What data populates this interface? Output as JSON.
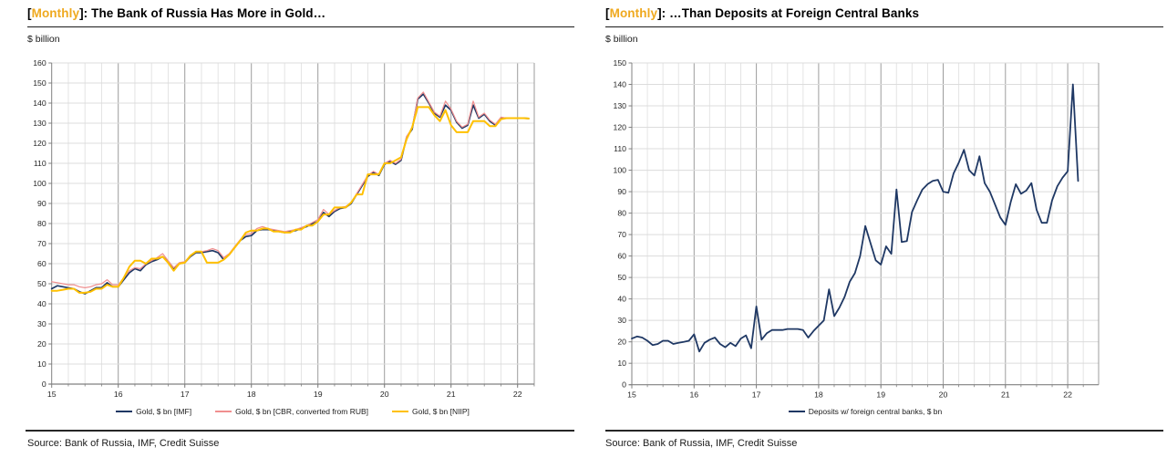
{
  "theme": {
    "highlight": "#EFA91F",
    "navy": "#1F3864",
    "pink": "#F08F8F",
    "gold": "#FFC000",
    "grid_minor": "#E4E4E4",
    "grid_major_h": "#DCDCDC",
    "grid_year": "#9C9C9C",
    "axis": "#808080",
    "tick_text": "#262626"
  },
  "chart_data": [
    {
      "type": "line",
      "title": "[Monthly]: The Bank of Russia Has More in Gold…",
      "title_open": "[",
      "title_highlight": "Monthly",
      "title_rest": "]: The Bank of Russia Has More in Gold…",
      "unit_label": "$ billion",
      "source": "Source: Bank of Russia, IMF, Credit Suisse",
      "x_start_year": 2015,
      "x_frequency": "monthly",
      "xtick_labels": [
        "15",
        "16",
        "17",
        "18",
        "19",
        "20",
        "21",
        "22"
      ],
      "x_minor_per_year": 4,
      "ylim": [
        0,
        160
      ],
      "ytick_step": 10,
      "grid": true,
      "legend_position": "bottom",
      "series": [
        {
          "name": "Gold, $ bn [IMF]",
          "color": "#1F3864",
          "width": 1.7,
          "values": [
            47.5,
            49,
            48.5,
            48,
            47.5,
            46,
            45,
            46.5,
            48,
            48,
            50.5,
            48.5,
            48.5,
            52,
            55.5,
            57.5,
            56.5,
            59.5,
            61,
            62,
            63.5,
            61,
            57.5,
            60,
            60.5,
            63.5,
            65.5,
            65.5,
            66,
            66.5,
            65.5,
            62,
            64.5,
            68,
            71.5,
            73.5,
            74,
            76.5,
            77,
            77,
            76.5,
            76,
            75.5,
            76,
            76.5,
            77.5,
            78.5,
            80,
            81,
            85.5,
            83.5,
            86,
            87.5,
            88,
            90,
            94.5,
            99,
            103.5,
            105.5,
            104,
            109.5,
            111,
            109.5,
            111.5,
            123,
            127,
            142,
            144.5,
            140,
            135,
            133,
            139,
            136.5,
            130.5,
            127.5,
            129,
            139,
            132.5,
            134.5,
            131,
            129,
            132.5,
            132.5,
            132.5,
            132.5,
            132.5,
            132.3
          ]
        },
        {
          "name": "Gold, $ bn [CBR, converted from RUB]",
          "color": "#F08F8F",
          "width": 1.2,
          "values": [
            51,
            50.5,
            50,
            49.5,
            49.5,
            48.5,
            48,
            48.5,
            49.5,
            50,
            52,
            49.5,
            49.5,
            53,
            56.5,
            58,
            57.5,
            60,
            61.5,
            63,
            65,
            61.5,
            58,
            60.5,
            61,
            64,
            66,
            66,
            66.5,
            67.5,
            66.5,
            63,
            65,
            68.5,
            72,
            74.5,
            75,
            77.5,
            78.5,
            77.5,
            77,
            76.5,
            76,
            76.5,
            77,
            78,
            79,
            80.5,
            82,
            87,
            84.5,
            86.5,
            88,
            88.5,
            90.5,
            95,
            99.5,
            104,
            106,
            104.5,
            110,
            111.5,
            110,
            112,
            123.5,
            127.5,
            142.5,
            145.5,
            140.5,
            135.5,
            133.5,
            141,
            137,
            131,
            128,
            129.5,
            141,
            133,
            135,
            131.5,
            129.5,
            133,
            132.5,
            132.5,
            132.5,
            132.5,
            132.3
          ]
        },
        {
          "name": "Gold, $ bn [NIIP]",
          "color": "#FFC000",
          "width": 2,
          "values": [
            46.5,
            46.5,
            47,
            47.5,
            47.5,
            45.5,
            45.5,
            46,
            47.5,
            47.5,
            49.5,
            48.5,
            48.5,
            53,
            58.5,
            61.5,
            61.5,
            60,
            62.5,
            62.5,
            63.5,
            60.5,
            56.5,
            60,
            60.5,
            64,
            66,
            66,
            60.5,
            60.5,
            60.5,
            62,
            64.5,
            68,
            71.5,
            75.5,
            76.5,
            76.5,
            77.5,
            77.5,
            76,
            76,
            75.5,
            75.5,
            77,
            77,
            79,
            79,
            81,
            84.5,
            84.5,
            88,
            88,
            88,
            90.5,
            94.5,
            94.5,
            104.5,
            104.5,
            104.5,
            110,
            110,
            111.5,
            113,
            122,
            128,
            138,
            138,
            138,
            134,
            131,
            136.5,
            129,
            125.5,
            125.5,
            125.5,
            131,
            131,
            131,
            128.5,
            128.5,
            132,
            132.5,
            132.5,
            132.5,
            132.5,
            132.3
          ]
        }
      ]
    },
    {
      "type": "line",
      "title": "[Monthly]: …Than Deposits at Foreign Central Banks",
      "title_open": "[",
      "title_highlight": "Monthly",
      "title_rest": "]: …Than Deposits at Foreign Central Banks",
      "unit_label": "$ billion",
      "source": "Source: Bank of Russia, IMF, Credit Suisse",
      "x_start_year": 2015,
      "x_frequency": "monthly",
      "xtick_labels": [
        "15",
        "16",
        "17",
        "18",
        "19",
        "20",
        "21",
        "22"
      ],
      "x_minor_per_year": 4,
      "ylim": [
        0,
        150
      ],
      "ytick_step": 10,
      "grid": true,
      "legend_position": "bottom",
      "series": [
        {
          "name": "Deposits w/ foreign central banks, $ bn",
          "color": "#1F3864",
          "width": 1.8,
          "values": [
            21.5,
            22.5,
            22,
            20.5,
            18.5,
            19,
            20.5,
            20.5,
            19,
            19.5,
            20,
            20.5,
            23.5,
            15.5,
            19.5,
            21,
            22,
            19,
            17.5,
            19.5,
            18,
            21.5,
            23,
            17,
            36.5,
            21,
            24,
            25.5,
            25.5,
            25.5,
            26,
            26,
            26,
            25.5,
            22,
            25,
            27.5,
            30,
            44.5,
            32,
            36,
            41,
            48,
            52,
            60,
            74,
            66,
            58,
            56,
            64.5,
            61,
            91,
            66.5,
            67,
            80.5,
            86,
            91,
            93.5,
            95,
            95.5,
            90,
            89.5,
            98.5,
            103.5,
            109.5,
            100,
            97.5,
            106.5,
            94,
            90,
            84,
            78,
            74.5,
            85,
            93.5,
            89,
            90.5,
            94,
            81.5,
            75.5,
            75.5,
            86,
            92.5,
            96.5,
            99.5,
            140,
            95
          ]
        }
      ]
    }
  ]
}
